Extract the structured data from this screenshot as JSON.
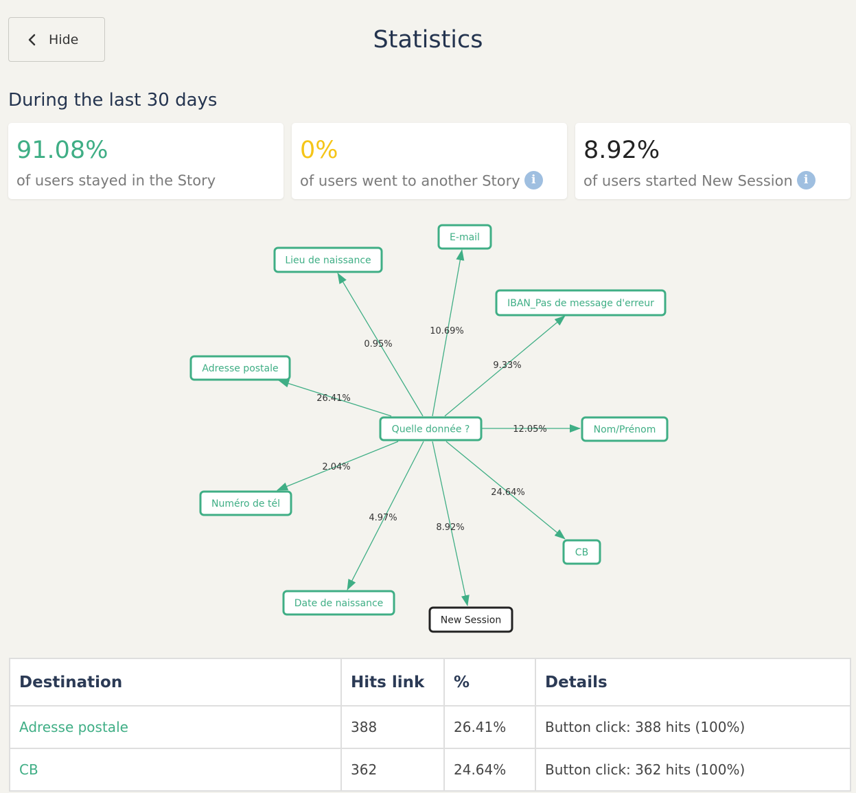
{
  "header": {
    "hide_label": "Hide",
    "title": "Statistics"
  },
  "period_label": "During the last 30 days",
  "cards": [
    {
      "value": "91.08%",
      "description": "of users stayed in the Story",
      "color": "#3fae85",
      "info": false
    },
    {
      "value": "0%",
      "description": "of users went to another Story",
      "color": "#f5c518",
      "info": true
    },
    {
      "value": "8.92%",
      "description": "of users started New Session",
      "color": "#222222",
      "info": true
    }
  ],
  "graph": {
    "center": "Quelle donnée ?",
    "nodes": [
      {
        "id": "email",
        "label": "E-mail"
      },
      {
        "id": "lieu",
        "label": "Lieu de naissance"
      },
      {
        "id": "iban",
        "label": "IBAN_Pas de message d'erreur"
      },
      {
        "id": "adresse",
        "label": "Adresse postale"
      },
      {
        "id": "nom",
        "label": "Nom/Prénom"
      },
      {
        "id": "tel",
        "label": "Numéro de tél"
      },
      {
        "id": "cb",
        "label": "CB"
      },
      {
        "id": "date",
        "label": "Date de naissance"
      },
      {
        "id": "session",
        "label": "New Session"
      }
    ],
    "edges": [
      {
        "to": "email",
        "label": "10.69%"
      },
      {
        "to": "lieu",
        "label": "0.95%"
      },
      {
        "to": "iban",
        "label": "9.33%"
      },
      {
        "to": "adresse",
        "label": "26.41%"
      },
      {
        "to": "nom",
        "label": "12.05%"
      },
      {
        "to": "tel",
        "label": "2.04%"
      },
      {
        "to": "cb",
        "label": "24.64%"
      },
      {
        "to": "date",
        "label": "4.97%"
      },
      {
        "to": "session",
        "label": "8.92%"
      }
    ]
  },
  "table": {
    "headers": [
      "Destination",
      "Hits link",
      "%",
      "Details"
    ],
    "rows": [
      {
        "destination": "Adresse postale",
        "hits": "388",
        "percent": "26.41%",
        "details": "Button click: 388 hits (100%)"
      },
      {
        "destination": "CB",
        "hits": "362",
        "percent": "24.64%",
        "details": "Button click: 362 hits (100%)"
      }
    ]
  },
  "colors": {
    "accent": "#3fae85",
    "warning": "#f5c518",
    "info": "#9fbfe0"
  }
}
